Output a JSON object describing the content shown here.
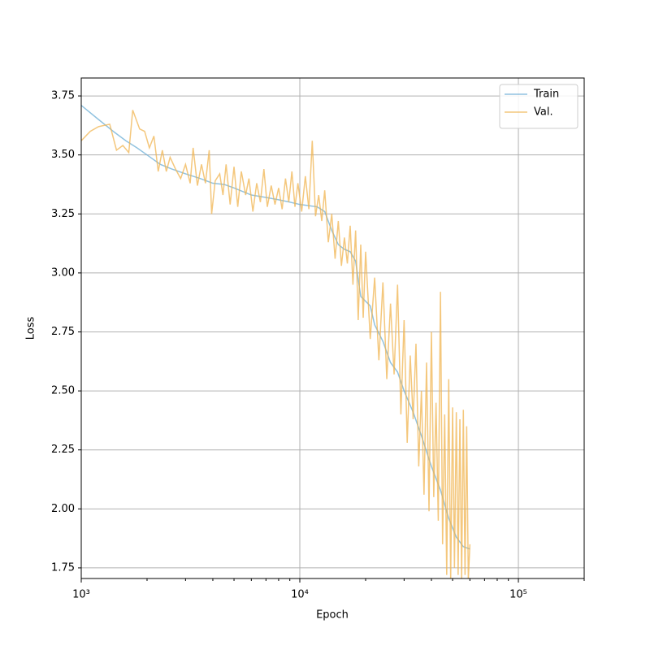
{
  "chart_data": {
    "type": "line",
    "x_label": "Epoch",
    "y_label": "Loss",
    "xscale": "log",
    "xlim": [
      1000,
      200000
    ],
    "xticks": [
      {
        "value": 1000,
        "label": "10³"
      },
      {
        "value": 10000,
        "label": "10⁴"
      },
      {
        "value": 100000,
        "label": "10⁵"
      }
    ],
    "xminorticks": [
      2000,
      3000,
      4000,
      5000,
      6000,
      7000,
      8000,
      9000,
      20000,
      30000,
      40000,
      50000,
      60000,
      70000,
      80000,
      90000,
      200000
    ],
    "ylim": [
      1.705,
      3.826
    ],
    "yticks": [
      1.75,
      {
        "value": 2,
        "label": "2.00"
      },
      2.25,
      {
        "value": 2.5,
        "label": "2.50"
      },
      2.75,
      {
        "value": 3,
        "label": "3.00"
      },
      3.25,
      {
        "value": 3.5,
        "label": "3.50"
      },
      3.75
    ],
    "grid": true,
    "legend": "upper right",
    "series": [
      {
        "name": "Train",
        "color": "#6baed6",
        "x": [
          1000,
          1200,
          1400,
          1600,
          1800,
          2000,
          2300,
          2600,
          3000,
          3500,
          4000,
          4500,
          5000,
          6000,
          7000,
          8000,
          9000,
          10000,
          11000,
          12000,
          13000,
          14000,
          15000,
          16000,
          17000,
          18000,
          19000,
          20000,
          21000,
          22000,
          24000,
          26000,
          28000,
          30000,
          33000,
          36000,
          40000,
          44000,
          48000,
          52000,
          56000,
          60000
        ],
        "values": [
          3.71,
          3.65,
          3.6,
          3.56,
          3.53,
          3.5,
          3.46,
          3.44,
          3.42,
          3.4,
          3.38,
          3.375,
          3.36,
          3.33,
          3.32,
          3.31,
          3.3,
          3.29,
          3.285,
          3.28,
          3.26,
          3.18,
          3.12,
          3.1,
          3.09,
          3.05,
          2.9,
          2.88,
          2.86,
          2.78,
          2.71,
          2.62,
          2.58,
          2.5,
          2.41,
          2.31,
          2.18,
          2.08,
          1.96,
          1.88,
          1.84,
          1.83
        ]
      },
      {
        "name": "Val.",
        "color": "#f0b450",
        "x": [
          1000,
          1100,
          1200,
          1350,
          1450,
          1550,
          1650,
          1720,
          1850,
          1950,
          2050,
          2150,
          2250,
          2350,
          2450,
          2550,
          2700,
          2850,
          3000,
          3150,
          3250,
          3400,
          3550,
          3700,
          3850,
          3950,
          4100,
          4300,
          4450,
          4600,
          4800,
          5000,
          5200,
          5400,
          5650,
          5850,
          6100,
          6350,
          6600,
          6850,
          7100,
          7400,
          7700,
          8000,
          8300,
          8600,
          8900,
          9200,
          9500,
          9800,
          10200,
          10600,
          11000,
          11400,
          11800,
          12200,
          12600,
          13000,
          13500,
          14000,
          14500,
          15000,
          15500,
          16000,
          16500,
          17000,
          17500,
          18000,
          18500,
          19000,
          19500,
          20000,
          21000,
          22000,
          23000,
          24000,
          25000,
          26000,
          27000,
          28000,
          29000,
          30000,
          31000,
          32000,
          33000,
          34000,
          35000,
          36000,
          37000,
          38000,
          39000,
          40000,
          41000,
          42000,
          43000,
          44000,
          45000,
          46000,
          47000,
          48000,
          49000,
          50000,
          51000,
          52000,
          53000,
          54000,
          55000,
          56000,
          57000,
          58000,
          59000,
          60000
        ],
        "values": [
          3.56,
          3.6,
          3.62,
          3.63,
          3.52,
          3.54,
          3.51,
          3.69,
          3.61,
          3.6,
          3.53,
          3.58,
          3.43,
          3.52,
          3.43,
          3.49,
          3.44,
          3.4,
          3.46,
          3.38,
          3.53,
          3.37,
          3.46,
          3.38,
          3.52,
          3.25,
          3.39,
          3.42,
          3.33,
          3.46,
          3.29,
          3.45,
          3.28,
          3.43,
          3.33,
          3.4,
          3.26,
          3.38,
          3.3,
          3.44,
          3.28,
          3.37,
          3.29,
          3.36,
          3.27,
          3.4,
          3.3,
          3.43,
          3.28,
          3.38,
          3.26,
          3.41,
          3.27,
          3.56,
          3.24,
          3.33,
          3.22,
          3.35,
          3.13,
          3.25,
          3.06,
          3.22,
          3.03,
          3.15,
          3.04,
          3.2,
          2.95,
          3.18,
          2.8,
          3.12,
          2.81,
          3.09,
          2.72,
          2.98,
          2.63,
          2.96,
          2.55,
          2.87,
          2.57,
          2.95,
          2.4,
          2.8,
          2.28,
          2.65,
          2.38,
          2.7,
          2.18,
          2.5,
          2.06,
          2.62,
          1.99,
          2.75,
          2.05,
          2.45,
          1.95,
          2.92,
          1.85,
          2.4,
          1.72,
          2.55,
          1.7,
          2.43,
          1.75,
          2.41,
          1.72,
          2.38,
          1.7,
          2.42,
          1.72,
          2.35,
          1.7,
          1.85
        ]
      }
    ]
  }
}
